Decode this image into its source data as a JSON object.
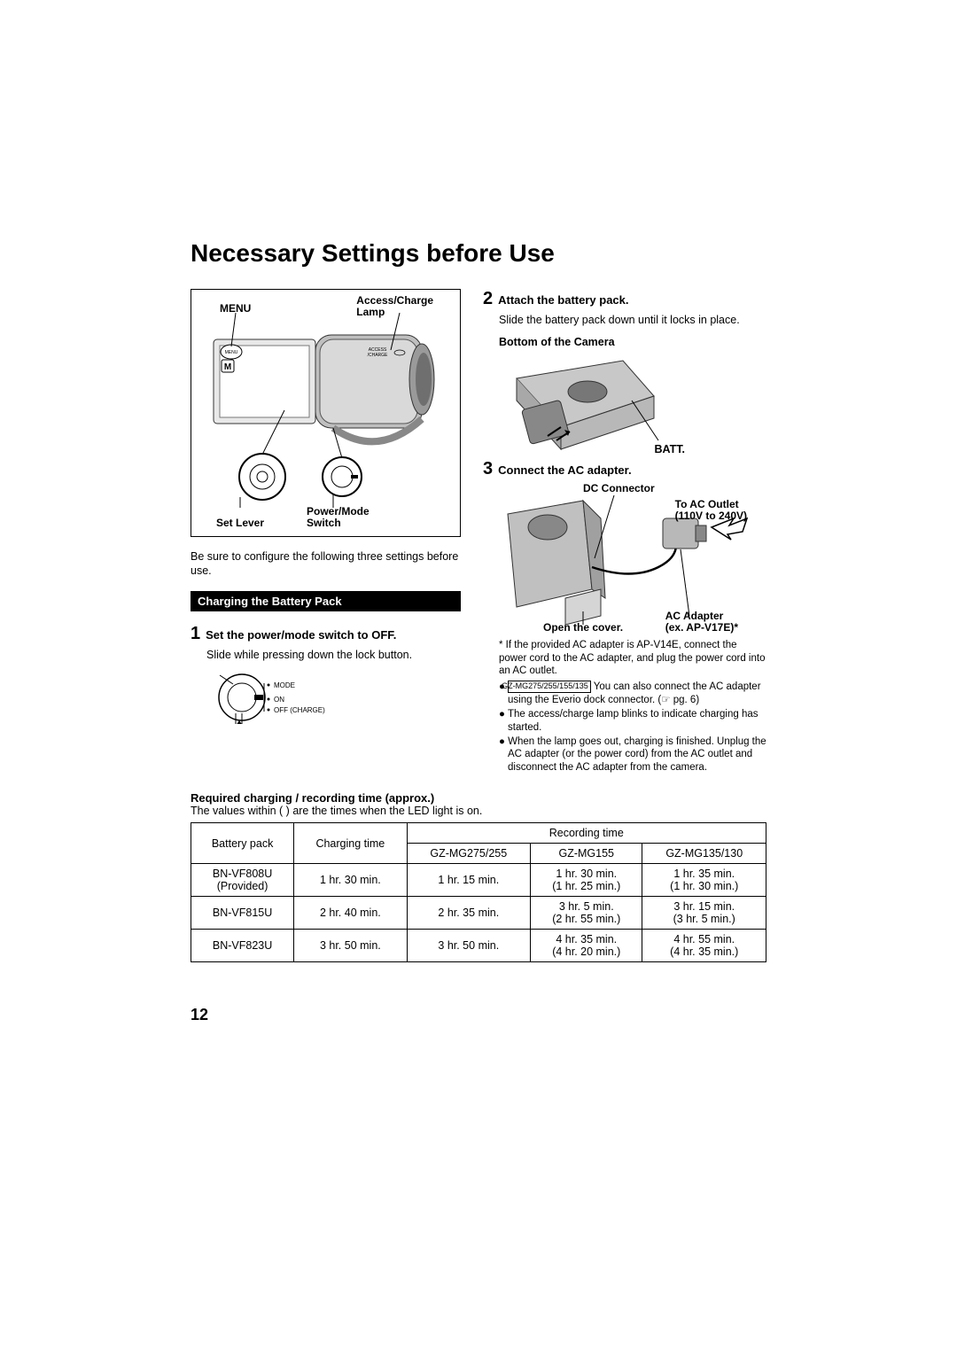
{
  "page_number": "12",
  "title": "Necessary Settings before Use",
  "camera_diagram": {
    "menu_label": "MENU",
    "access_charge_label": "Access/Charge\nLamp",
    "set_lever_label": "Set Lever",
    "power_mode_label": "Power/Mode\nSwitch",
    "menu_btn_text": "MENU",
    "m_indicator": "M",
    "access_small": "ACCESS\n/CHARGE"
  },
  "intro": "Be sure to configure the following three settings before use.",
  "section_heading": "Charging the Battery Pack",
  "step1": {
    "num": "1",
    "title": "Set the power/mode switch to OFF.",
    "body": "Slide while pressing down the lock button.",
    "mode_label": "MODE",
    "on_label": "ON",
    "off_label": "OFF (CHARGE)"
  },
  "step2": {
    "num": "2",
    "title": "Attach the battery pack.",
    "body": "Slide the battery pack down until it locks in place.",
    "bottom_label": "Bottom of the Camera",
    "batt_label": "BATT."
  },
  "step3": {
    "num": "3",
    "title": "Connect the AC adapter.",
    "dc_connector": "DC Connector",
    "to_ac_outlet": "To AC Outlet\n(110V to 240V)",
    "open_cover": "Open the cover.",
    "ac_adapter": "AC Adapter\n(ex. AP-V17E)*"
  },
  "footnote": "* If the provided AC adapter is AP-V14E, connect the power cord to the AC adapter, and plug the power cord into an AC outlet.",
  "bullets": [
    {
      "model": "GZ-MG275/255/155/135",
      "text_before": "",
      "text_after": " You can also connect the AC adapter using the Everio dock connector. (☞ pg. 6)"
    },
    {
      "text": "The access/charge lamp blinks to indicate charging has started."
    },
    {
      "text": "When the lamp goes out, charging is finished. Unplug the AC adapter (or the power cord) from the AC outlet and disconnect the AC adapter from the camera."
    }
  ],
  "table": {
    "title": "Required charging / recording time (approx.)",
    "note": "The values within ( ) are the times when the LED light is on.",
    "headers": {
      "battery_pack": "Battery pack",
      "charging_time": "Charging time",
      "recording_time": "Recording time",
      "col_a": "GZ-MG275/255",
      "col_b": "GZ-MG155",
      "col_c": "GZ-MG135/130"
    },
    "rows": [
      {
        "pack": "BN-VF808U\n(Provided)",
        "charge": "1 hr. 30 min.",
        "a": "1 hr. 15 min.",
        "b": "1 hr. 30 min.\n(1 hr. 25 min.)",
        "c": "1 hr. 35 min.\n(1 hr. 30 min.)"
      },
      {
        "pack": "BN-VF815U",
        "charge": "2 hr. 40 min.",
        "a": "2 hr. 35 min.",
        "b": "3 hr. 5  min.\n(2 hr. 55 min.)",
        "c": "3 hr. 15 min.\n(3 hr. 5 min.)"
      },
      {
        "pack": "BN-VF823U",
        "charge": "3 hr. 50 min.",
        "a": "3 hr. 50 min.",
        "b": "4 hr. 35 min.\n(4 hr. 20 min.)",
        "c": "4 hr. 55 min.\n(4 hr. 35 min.)"
      }
    ]
  }
}
